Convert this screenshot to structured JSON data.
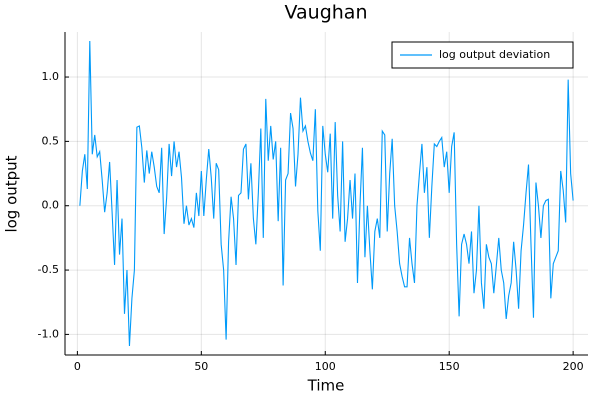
{
  "chart_data": {
    "type": "line",
    "title": "Vaughan",
    "x_label": "Time",
    "y_label": "log output",
    "x": [
      1,
      2,
      3,
      4,
      5,
      6,
      7,
      8,
      9,
      10,
      11,
      12,
      13,
      14,
      15,
      16,
      17,
      18,
      19,
      20,
      21,
      22,
      23,
      24,
      25,
      26,
      27,
      28,
      29,
      30,
      31,
      32,
      33,
      34,
      35,
      36,
      37,
      38,
      39,
      40,
      41,
      42,
      43,
      44,
      45,
      46,
      47,
      48,
      49,
      50,
      51,
      52,
      53,
      54,
      55,
      56,
      57,
      58,
      59,
      60,
      61,
      62,
      63,
      64,
      65,
      66,
      67,
      68,
      69,
      70,
      71,
      72,
      73,
      74,
      75,
      76,
      77,
      78,
      79,
      80,
      81,
      82,
      83,
      84,
      85,
      86,
      87,
      88,
      89,
      90,
      91,
      92,
      93,
      94,
      95,
      96,
      97,
      98,
      99,
      100,
      101,
      102,
      103,
      104,
      105,
      106,
      107,
      108,
      109,
      110,
      111,
      112,
      113,
      114,
      115,
      116,
      117,
      118,
      119,
      120,
      121,
      122,
      123,
      124,
      125,
      126,
      127,
      128,
      129,
      130,
      131,
      132,
      133,
      134,
      135,
      136,
      137,
      138,
      139,
      140,
      141,
      142,
      143,
      144,
      145,
      146,
      147,
      148,
      149,
      150,
      151,
      152,
      153,
      154,
      155,
      156,
      157,
      158,
      159,
      160,
      161,
      162,
      163,
      164,
      165,
      166,
      167,
      168,
      169,
      170,
      171,
      172,
      173,
      174,
      175,
      176,
      177,
      178,
      179,
      180,
      181,
      182,
      183,
      184,
      185,
      186,
      187,
      188,
      189,
      190,
      191,
      192,
      193,
      194,
      195,
      196,
      197,
      198,
      199,
      200
    ],
    "series": [
      {
        "name": "log output deviation",
        "color": "#009af9",
        "values": [
          0.0,
          0.27,
          0.4,
          0.13,
          1.28,
          0.4,
          0.55,
          0.38,
          0.42,
          0.2,
          -0.05,
          0.1,
          0.34,
          -0.05,
          -0.46,
          0.2,
          -0.38,
          -0.1,
          -0.84,
          -0.5,
          -1.09,
          -0.72,
          -0.5,
          0.61,
          0.62,
          0.45,
          0.18,
          0.43,
          0.25,
          0.42,
          0.3,
          0.15,
          0.1,
          0.45,
          -0.22,
          0.06,
          0.48,
          0.23,
          0.5,
          0.3,
          0.42,
          0.22,
          -0.14,
          0.0,
          -0.15,
          -0.1,
          -0.17,
          0.1,
          -0.08,
          0.27,
          -0.08,
          0.2,
          0.44,
          0.22,
          -0.1,
          0.33,
          0.28,
          -0.3,
          -0.5,
          -1.04,
          -0.28,
          0.07,
          -0.1,
          -0.46,
          0.08,
          0.1,
          0.44,
          0.48,
          0.05,
          0.33,
          -0.1,
          -0.3,
          0.1,
          0.6,
          -0.25,
          0.83,
          0.35,
          0.62,
          0.36,
          0.5,
          -0.12,
          0.45,
          -0.62,
          0.2,
          0.25,
          0.72,
          0.6,
          0.15,
          0.4,
          0.84,
          0.58,
          0.62,
          0.5,
          0.41,
          0.35,
          0.75,
          -0.04,
          -0.35,
          0.62,
          0.4,
          0.26,
          0.56,
          -0.1,
          0.65,
          0.08,
          -0.2,
          0.5,
          -0.28,
          -0.1,
          0.2,
          -0.1,
          0.25,
          -0.6,
          0.0,
          0.45,
          -0.4,
          0.0,
          -0.35,
          -0.65,
          -0.2,
          -0.1,
          -0.25,
          0.58,
          0.55,
          -0.2,
          0.25,
          0.52,
          0.0,
          -0.2,
          -0.45,
          -0.55,
          -0.63,
          -0.63,
          -0.25,
          -0.45,
          -0.6,
          0.0,
          0.25,
          0.48,
          0.1,
          0.3,
          -0.25,
          0.15,
          0.48,
          0.46,
          0.5,
          0.53,
          0.3,
          0.42,
          0.1,
          0.46,
          0.57,
          -0.3,
          -0.86,
          -0.3,
          -0.22,
          -0.3,
          -0.45,
          -0.2,
          -0.68,
          -0.5,
          0.0,
          -0.6,
          -0.8,
          -0.3,
          -0.4,
          -0.45,
          -0.68,
          -0.47,
          -0.25,
          -0.5,
          -0.6,
          -0.88,
          -0.7,
          -0.6,
          -0.28,
          -0.5,
          -0.8,
          -0.35,
          -0.15,
          0.1,
          0.32,
          -0.3,
          -0.87,
          0.18,
          0.0,
          -0.25,
          0.0,
          0.04,
          0.05,
          -0.72,
          -0.45,
          -0.4,
          -0.35,
          0.27,
          0.12,
          -0.13,
          0.98,
          0.25,
          0.04
        ]
      }
    ],
    "xlim": [
      -5,
      206
    ],
    "ylim": [
      -1.16,
      1.35
    ],
    "xticks": [
      0,
      50,
      100,
      150,
      200
    ],
    "yticks": [
      {
        "value": -1,
        "label": "-1.0"
      },
      -0.5,
      {
        "value": 0,
        "label": "0.0"
      },
      0.5,
      {
        "value": 1,
        "label": "1.0"
      }
    ],
    "grid": true,
    "legend": "top-right"
  }
}
